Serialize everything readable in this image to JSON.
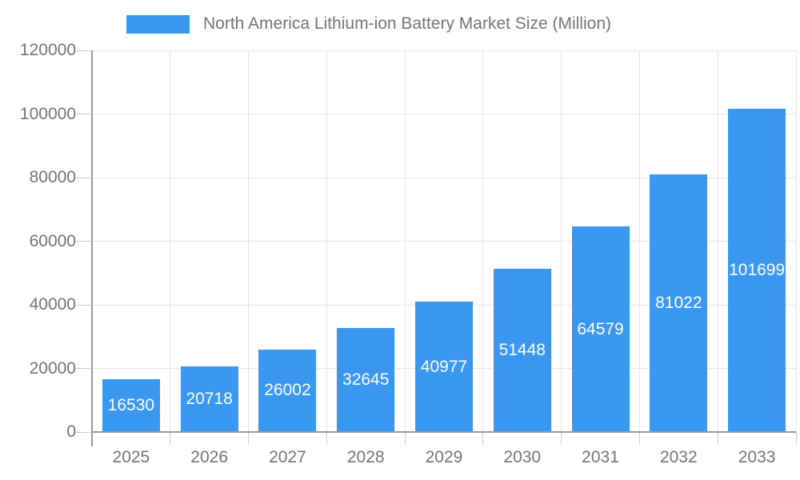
{
  "chart_data": {
    "type": "bar",
    "title": "North America Lithium-ion Battery Market Size (Million)",
    "legend": {
      "position": "top"
    },
    "categories": [
      "2025",
      "2026",
      "2027",
      "2028",
      "2029",
      "2030",
      "2031",
      "2032",
      "2033"
    ],
    "values": [
      16530,
      20718,
      26002,
      32645,
      40977,
      51448,
      64579,
      81022,
      101699
    ],
    "xlabel": "",
    "ylabel": "",
    "ylim": [
      0,
      120000
    ],
    "yticks": [
      0,
      20000,
      40000,
      60000,
      80000,
      100000,
      120000
    ],
    "grid": true,
    "bar_labels_visible": true,
    "colors": {
      "bar": "#3b98f1",
      "bar_label": "#ffffff",
      "axis_line": "#9a9a9a",
      "grid_line": "#e6e6e6",
      "tick_line": "#cccccc",
      "text": "#757575"
    }
  }
}
